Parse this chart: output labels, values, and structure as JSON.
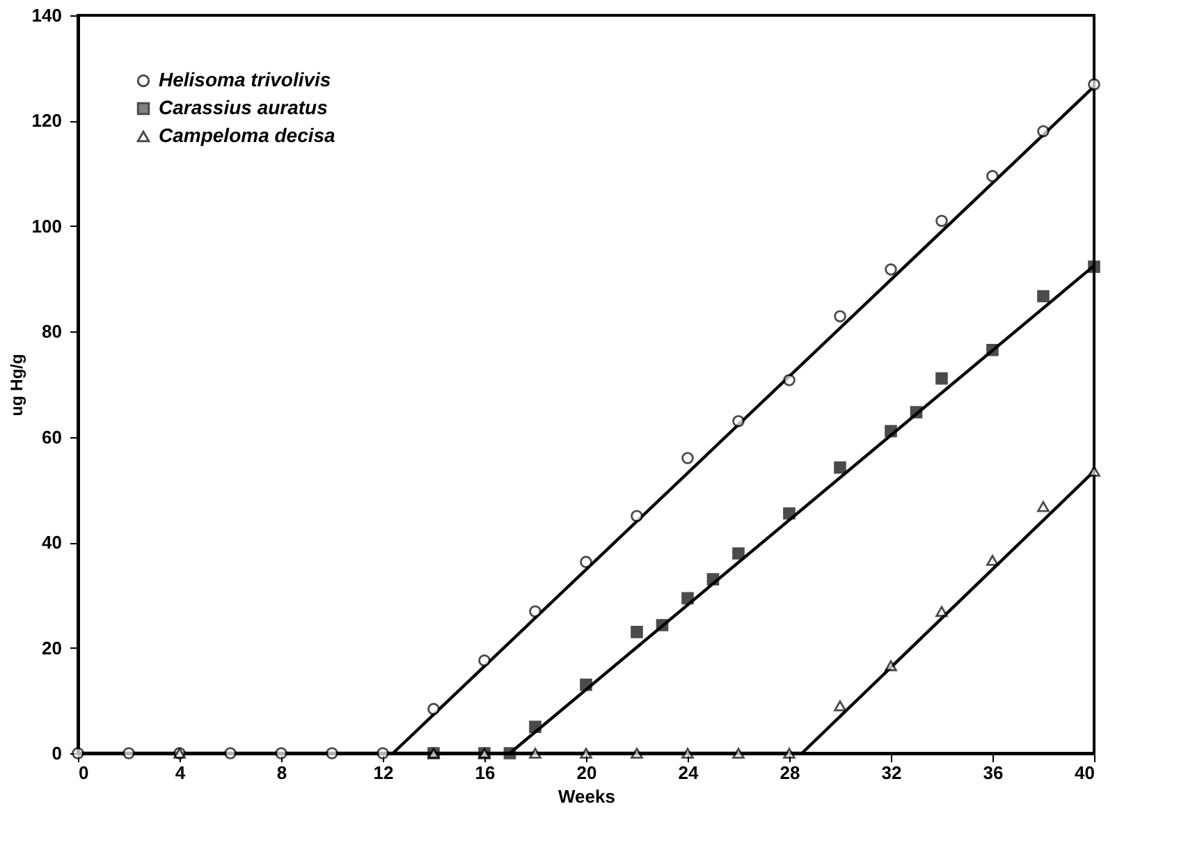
{
  "chart_data": {
    "type": "scatter",
    "xlabel": "Weeks",
    "ylabel": "ug Hg/g",
    "xlim": [
      0,
      40
    ],
    "ylim": [
      0,
      140
    ],
    "xticks": [
      0,
      4,
      8,
      12,
      16,
      20,
      24,
      28,
      32,
      36,
      40
    ],
    "yticks": [
      0,
      20,
      40,
      60,
      80,
      100,
      120,
      140
    ],
    "grid": false,
    "legend": "top left",
    "series": [
      {
        "name": "Helisoma trivolivis",
        "marker": "circle",
        "color": "#000000",
        "x": [
          0,
          2,
          4,
          6,
          8,
          10,
          12,
          14,
          16,
          18,
          20,
          22,
          24,
          26,
          28,
          30,
          32,
          34,
          36,
          38,
          40
        ],
        "values": [
          0,
          0,
          0,
          0,
          0,
          0,
          0,
          8.4,
          17.6,
          26.9,
          36.3,
          45,
          56,
          63,
          70.8,
          82.9,
          91.8,
          101,
          109.5,
          118,
          126.9
        ]
      },
      {
        "name": "Carassius auratus",
        "marker": "square",
        "color": "#000000",
        "x": [
          14,
          16,
          17,
          18,
          20,
          22,
          23,
          24,
          25,
          26,
          28,
          30,
          32,
          33,
          34,
          36,
          38,
          40
        ],
        "values": [
          0,
          0,
          0,
          5,
          13,
          23,
          24.3,
          29.4,
          33,
          37.9,
          45.5,
          54.2,
          61.1,
          64.7,
          71.1,
          76.5,
          86.7,
          92.3
        ]
      },
      {
        "name": "Campeloma decisa",
        "marker": "triangle",
        "color": "#000000",
        "x": [
          4,
          14,
          16,
          18,
          20,
          22,
          24,
          26,
          28,
          30,
          32,
          34,
          36,
          38,
          40
        ],
        "values": [
          0,
          0,
          0,
          0,
          0,
          0,
          0,
          0,
          0,
          9,
          16.6,
          26.9,
          36.6,
          46.8,
          53.5
        ]
      },
      {
        "type": "line",
        "marker": "none",
        "color": "#000000",
        "x": [
          0,
          12.4,
          40
        ],
        "values": [
          0,
          0,
          126.5
        ]
      },
      {
        "type": "line",
        "marker": "none",
        "color": "#000000",
        "x": [
          12.4,
          17,
          40
        ],
        "values": [
          0,
          0,
          92.5
        ]
      },
      {
        "type": "line",
        "marker": "none",
        "color": "#000000",
        "x": [
          17,
          28.5,
          40
        ],
        "values": [
          0,
          0,
          53.5
        ]
      }
    ]
  }
}
